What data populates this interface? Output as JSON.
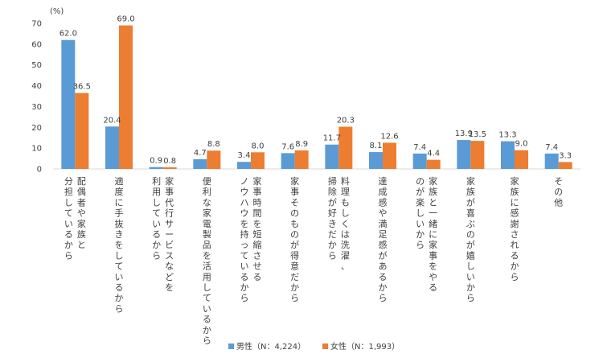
{
  "chart_data": {
    "type": "bar",
    "unit_label": "(%)",
    "ylim": [
      0,
      70
    ],
    "yticks": [
      0,
      10,
      20,
      30,
      40,
      50,
      60,
      70
    ],
    "grid": false,
    "legend_position": "bottom",
    "categories": [
      [
        "分担しているから",
        "配偶者や家族と"
      ],
      [
        "適度に手抜きをしているから"
      ],
      [
        "利用しているから",
        "家事代行サービスなどを"
      ],
      [
        "便利な家電製品を活用しているから"
      ],
      [
        "ノウハウを持っているから",
        "家事時間を短縮させる"
      ],
      [
        "家事そのものが得意だから"
      ],
      [
        "掃除が好きだから",
        "料理もしくは洗濯、"
      ],
      [
        "達成感や満足感があるから"
      ],
      [
        "のが楽しいから",
        "家族と一緒に家事をやる"
      ],
      [
        "家族が喜ぶのが嬉しいから"
      ],
      [
        "家族に感謝されるから"
      ],
      [
        "その他"
      ]
    ],
    "series": [
      {
        "name": "男性（N：4,224）",
        "color": "#5B9BD5",
        "values": [
          62.0,
          20.4,
          0.9,
          4.7,
          3.4,
          7.6,
          11.7,
          8.1,
          7.4,
          13.9,
          13.3,
          7.4
        ],
        "labels": [
          "62.0",
          "20.4",
          "0.9",
          "4.7",
          "3.4",
          "7.6",
          "11.7",
          "8.1",
          "7.4",
          "13.9",
          "13.3",
          "7.4"
        ]
      },
      {
        "name": "女性（N：1,993）",
        "color": "#ED7D31",
        "values": [
          36.5,
          69.0,
          0.8,
          8.8,
          8.0,
          8.9,
          20.3,
          12.6,
          4.4,
          13.5,
          9.0,
          3.3
        ],
        "labels": [
          "36.5",
          "69.0",
          "0.8",
          "8.8",
          "8.0",
          "8.9",
          "20.3",
          "12.6",
          "4.4",
          "13.5",
          "9.0",
          "3.3"
        ]
      }
    ]
  }
}
